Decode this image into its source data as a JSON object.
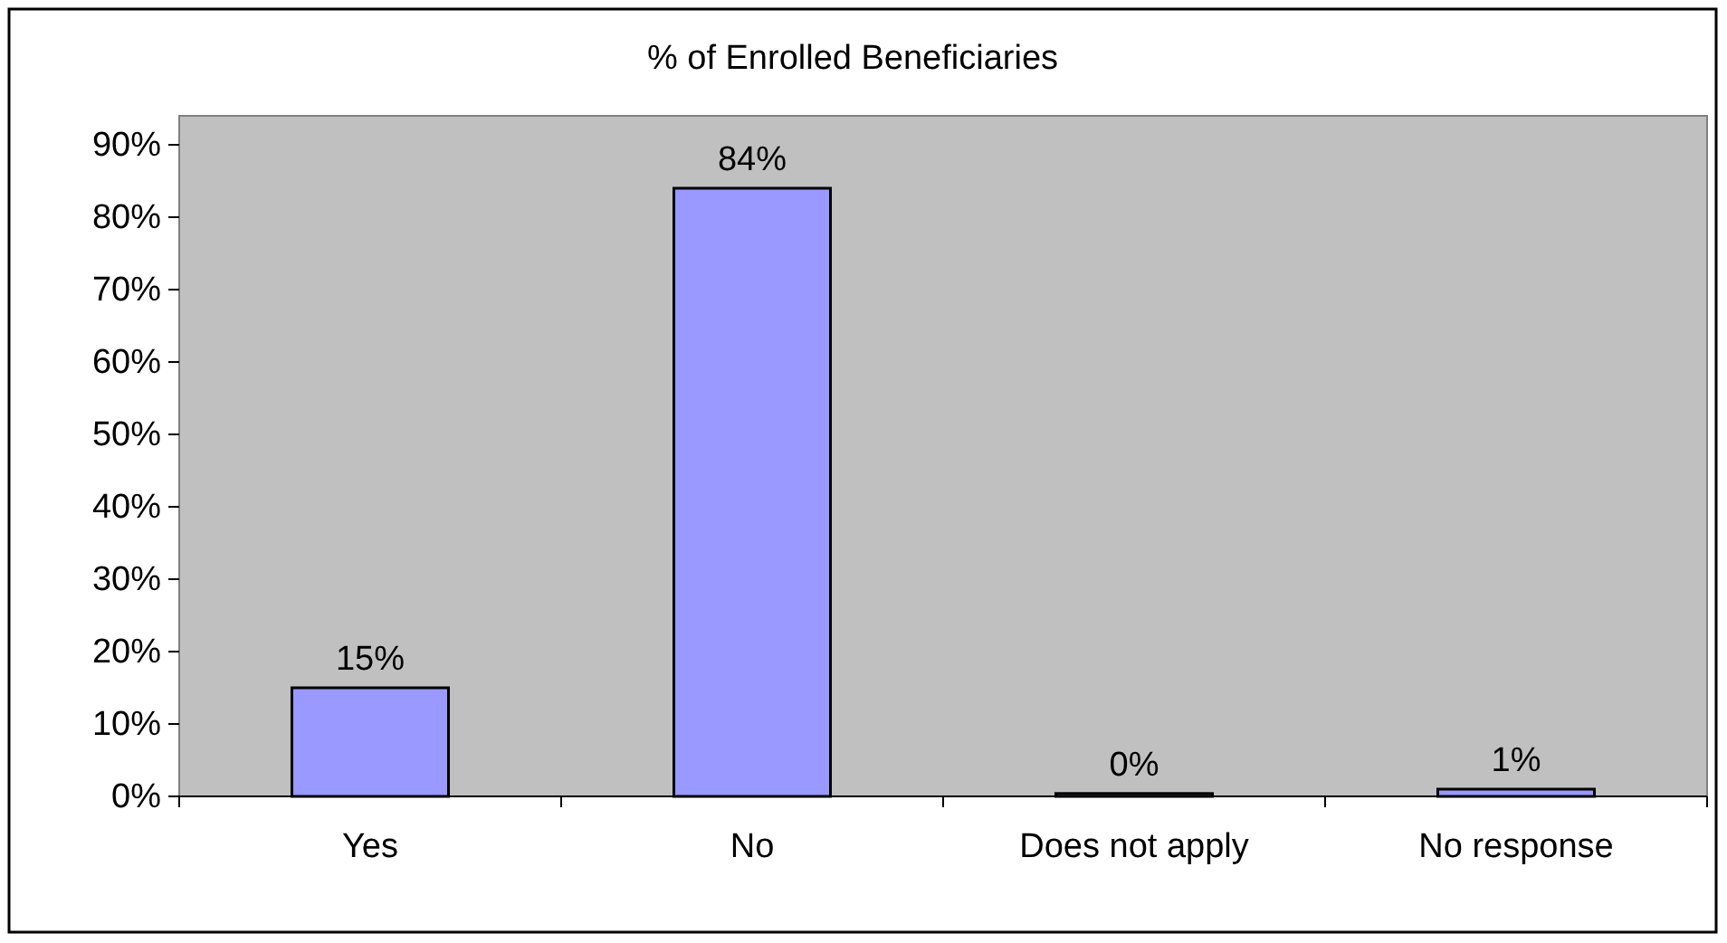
{
  "chart_data": {
    "type": "bar",
    "title": "% of Enrolled Beneficiaries",
    "categories": [
      "Yes",
      "No",
      "Does not apply",
      "No response"
    ],
    "values": [
      15,
      84,
      0.4,
      1
    ],
    "color": "#9999ff",
    "value_labels": [
      "15%",
      "84%",
      "0%",
      "1%"
    ],
    "ylim": [
      0,
      94
    ],
    "yticks": [
      {
        "value": 0,
        "label": "0%"
      },
      {
        "value": 10,
        "label": "10%"
      },
      {
        "value": 20,
        "label": "20%"
      },
      {
        "value": 30,
        "label": "30%"
      },
      {
        "value": 40,
        "label": "40%"
      },
      {
        "value": 50,
        "label": "50%"
      },
      {
        "value": 60,
        "label": "60%"
      },
      {
        "value": 70,
        "label": "70%"
      },
      {
        "value": 80,
        "label": "80%"
      },
      {
        "value": 90,
        "label": "90%"
      }
    ],
    "grid": false
  }
}
